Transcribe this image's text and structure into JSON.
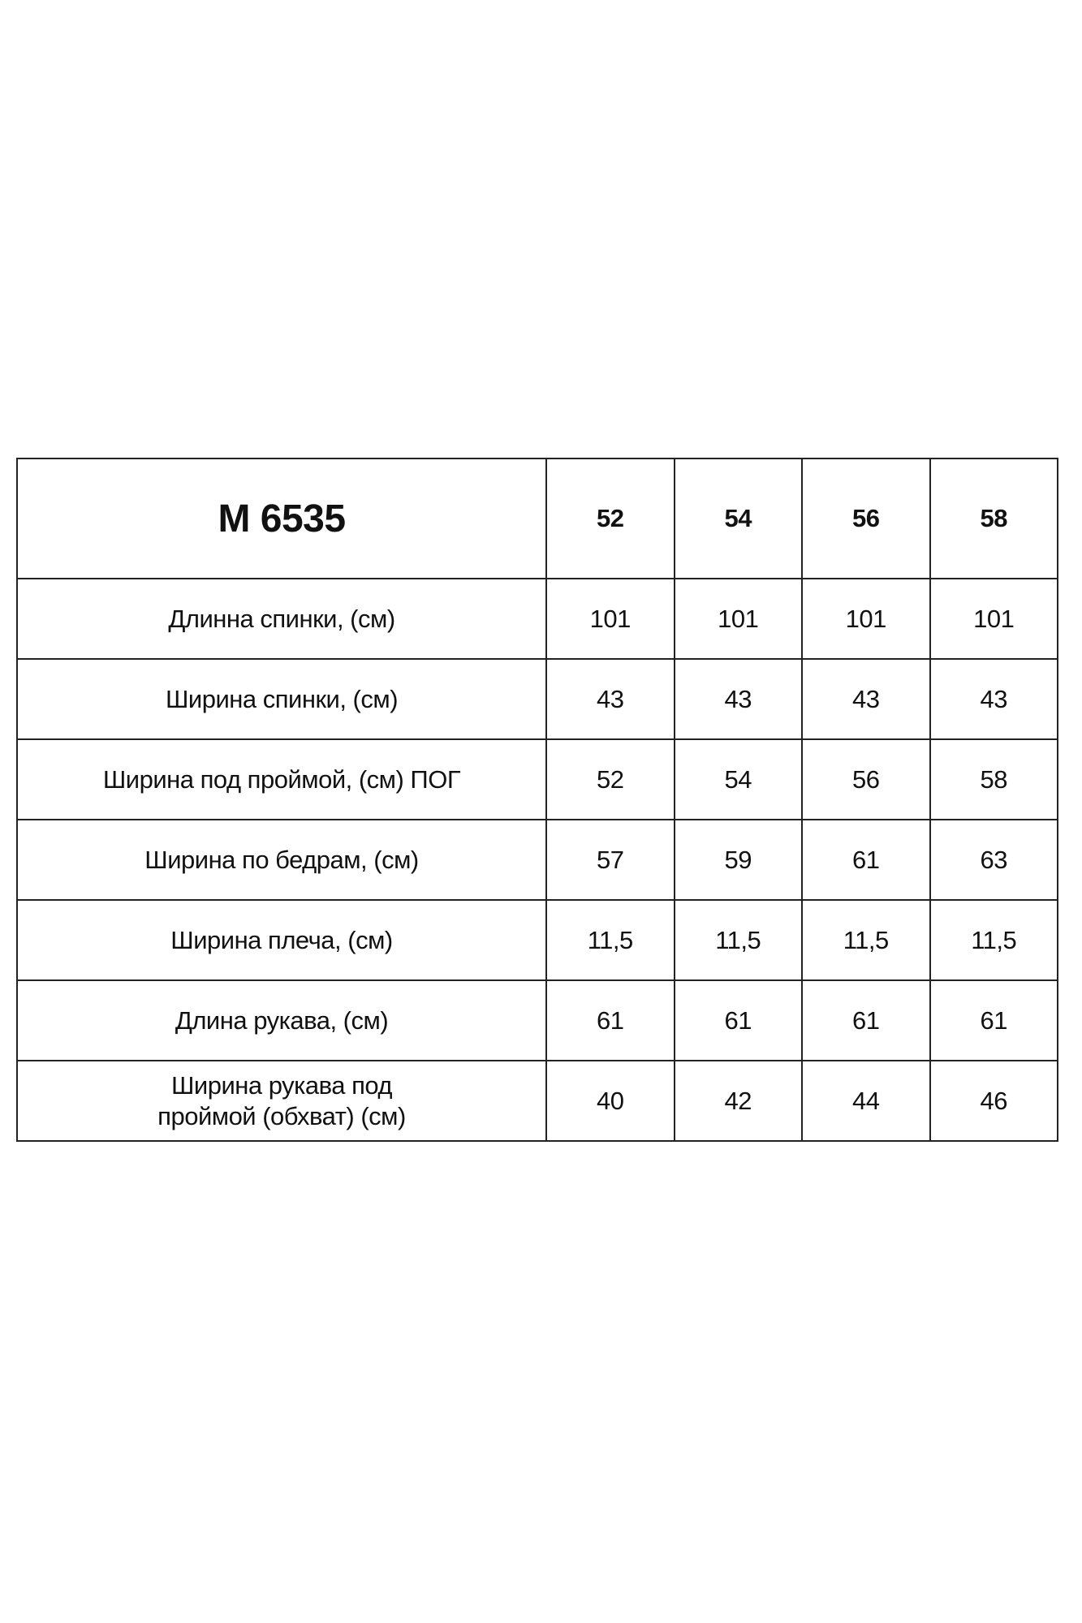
{
  "table": {
    "model": "М 6535",
    "sizes": [
      "52",
      "54",
      "56",
      "58"
    ],
    "rows": [
      {
        "label": "Длинна спинки, (см)",
        "values": [
          "101",
          "101",
          "101",
          "101"
        ]
      },
      {
        "label": "Ширина спинки, (см)",
        "values": [
          "43",
          "43",
          "43",
          "43"
        ]
      },
      {
        "label": "Ширина под проймой, (см) ПОГ",
        "values": [
          "52",
          "54",
          "56",
          "58"
        ]
      },
      {
        "label": "Ширина по бедрам, (см)",
        "values": [
          "57",
          "59",
          "61",
          "63"
        ]
      },
      {
        "label": "Ширина плеча, (см)",
        "values": [
          "11,5",
          "11,5",
          "11,5",
          "11,5"
        ]
      },
      {
        "label": "Длина рукава, (см)",
        "values": [
          "61",
          "61",
          "61",
          "61"
        ]
      },
      {
        "label": "Ширина рукава под проймой (обхват) (см)",
        "values": [
          "40",
          "42",
          "44",
          "46"
        ]
      }
    ]
  }
}
